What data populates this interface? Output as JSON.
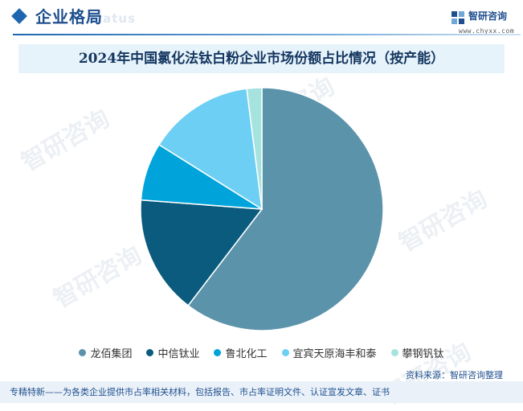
{
  "header": {
    "section_title": "企业格局",
    "ghost_text": "status",
    "logo_text": "智研咨询",
    "logo_url": "www.chyxx.com"
  },
  "watermark_text": "智研咨询",
  "chart_data": {
    "type": "pie",
    "title": "2024年中国氯化法钛白粉企业市场份额占比情况（按产能）",
    "categories": [
      "龙佰集团",
      "中信钛业",
      "鲁北化工",
      "宜宾天原海丰和泰",
      "攀钢钒钛"
    ],
    "values": [
      60.4,
      15.8,
      7.7,
      14.1,
      2.0
    ],
    "colors": [
      "#5b93ab",
      "#0a5b7e",
      "#00a4db",
      "#6ccff3",
      "#a6e3df"
    ],
    "start_angle_deg": 0,
    "legend_position": "bottom"
  },
  "source_label": "资料来源：智研咨询整理",
  "footer_text": "专精特新——为各类企业提供市占率相关材料，包括报告、市占率证明文件、认证宣发文章、证书"
}
